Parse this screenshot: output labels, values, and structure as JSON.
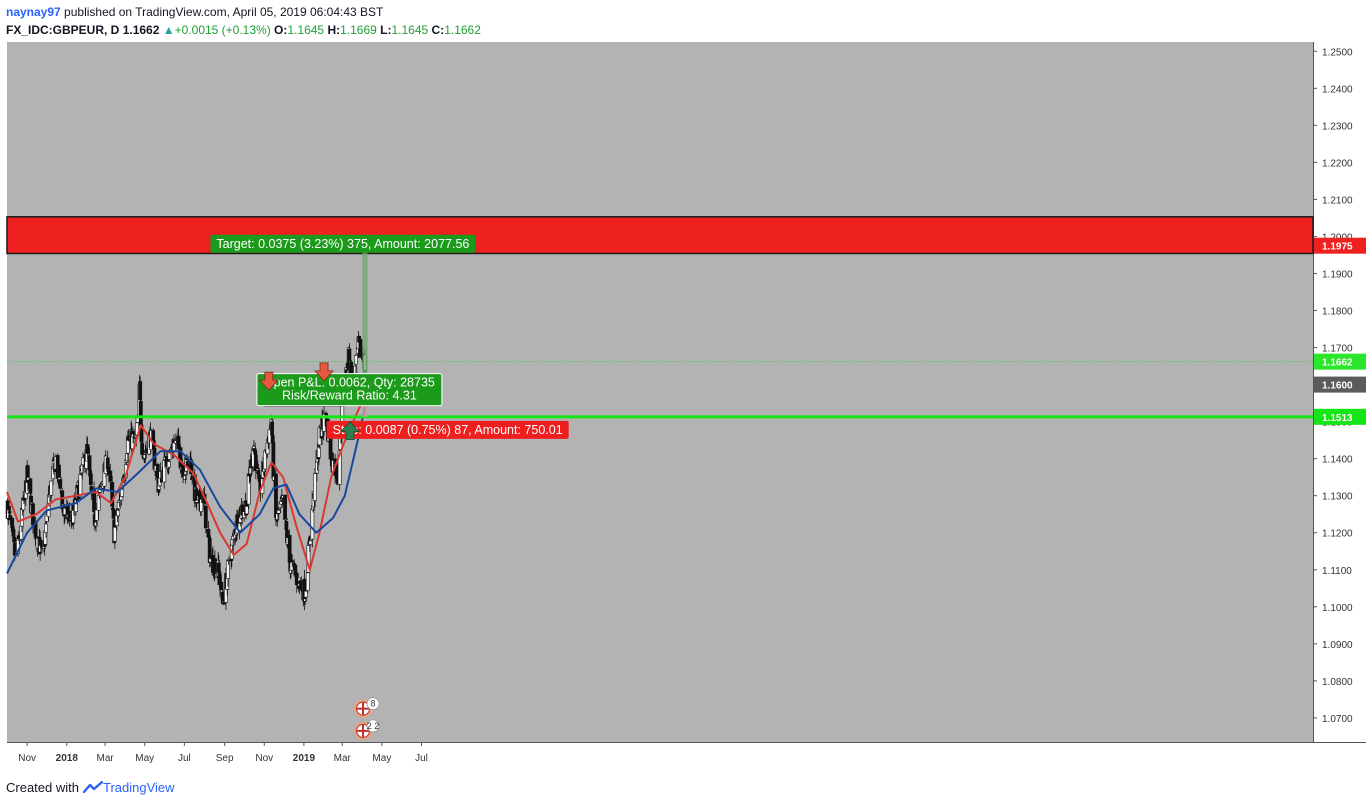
{
  "header": {
    "author": "naynay97",
    "published": "published on TradingView.com, April 05, 2019 06:04:43 BST",
    "symbol": "FX_IDC:GBPEUR, D",
    "last": "1.1662",
    "change": "+0.0015 (+0.13%)",
    "o_label": "O:",
    "o": "1.1645",
    "h_label": "H:",
    "h": "1.1669",
    "l_label": "L:",
    "l": "1.1645",
    "c_label": "C:",
    "c": "1.1662"
  },
  "footer": {
    "created": "Created with",
    "brand": "TradingView"
  },
  "colors": {
    "plot_bg": "#b3b3b3",
    "resistance_zone": "#ef2020",
    "support_line": "#16e616",
    "ma_fast": "#d83a33",
    "ma_slow": "#1848a0",
    "candle_up": "#f2f2f2",
    "candle_down": "#111111",
    "target_label": "#1b9a1b",
    "stop_label": "#ef1f1f",
    "arrow": "#e55a3f"
  },
  "chart_data": {
    "type": "candlestick",
    "symbol": "GBPEUR",
    "interval": "D",
    "x_ticks": [
      "Nov",
      "2018",
      "Mar",
      "May",
      "Jul",
      "Sep",
      "Nov",
      "2019",
      "Mar",
      "May",
      "Jul"
    ],
    "y_ticks": [
      "1.2500",
      "1.2400",
      "1.2300",
      "1.2200",
      "1.2100",
      "1.2000",
      "1.1900",
      "1.1800",
      "1.1700",
      "1.1600",
      "1.1500",
      "1.1400",
      "1.1300",
      "1.1200",
      "1.1100",
      "1.1000",
      "1.0900",
      "1.0800",
      "1.0700"
    ],
    "ylim": [
      1.0635,
      1.2525
    ],
    "close_path": [
      {
        "d": "2017-10-01",
        "c": 1.128
      },
      {
        "d": "2017-10-15",
        "c": 1.112
      },
      {
        "d": "2017-11-01",
        "c": 1.135
      },
      {
        "d": "2017-11-12",
        "c": 1.122
      },
      {
        "d": "2017-11-25",
        "c": 1.113
      },
      {
        "d": "2017-12-05",
        "c": 1.13
      },
      {
        "d": "2017-12-15",
        "c": 1.14
      },
      {
        "d": "2017-12-28",
        "c": 1.125
      },
      {
        "d": "2018-01-10",
        "c": 1.124
      },
      {
        "d": "2018-01-20",
        "c": 1.133
      },
      {
        "d": "2018-02-01",
        "c": 1.142
      },
      {
        "d": "2018-02-12",
        "c": 1.123
      },
      {
        "d": "2018-02-25",
        "c": 1.134
      },
      {
        "d": "2018-03-05",
        "c": 1.14
      },
      {
        "d": "2018-03-15",
        "c": 1.12
      },
      {
        "d": "2018-03-25",
        "c": 1.13
      },
      {
        "d": "2018-04-05",
        "c": 1.145
      },
      {
        "d": "2018-04-18",
        "c": 1.145
      },
      {
        "d": "2018-04-23",
        "c": 1.158
      },
      {
        "d": "2018-04-28",
        "c": 1.14
      },
      {
        "d": "2018-05-10",
        "c": 1.146
      },
      {
        "d": "2018-05-22",
        "c": 1.133
      },
      {
        "d": "2018-06-05",
        "c": 1.14
      },
      {
        "d": "2018-06-18",
        "c": 1.145
      },
      {
        "d": "2018-06-30",
        "c": 1.137
      },
      {
        "d": "2018-07-10",
        "c": 1.14
      },
      {
        "d": "2018-07-20",
        "c": 1.127
      },
      {
        "d": "2018-07-30",
        "c": 1.13
      },
      {
        "d": "2018-08-10",
        "c": 1.113
      },
      {
        "d": "2018-08-22",
        "c": 1.11
      },
      {
        "d": "2018-08-29",
        "c": 1.101
      },
      {
        "d": "2018-09-10",
        "c": 1.114
      },
      {
        "d": "2018-09-22",
        "c": 1.125
      },
      {
        "d": "2018-10-05",
        "c": 1.128
      },
      {
        "d": "2018-10-15",
        "c": 1.145
      },
      {
        "d": "2018-10-25",
        "c": 1.131
      },
      {
        "d": "2018-11-05",
        "c": 1.143
      },
      {
        "d": "2018-11-12",
        "c": 1.151
      },
      {
        "d": "2018-11-18",
        "c": 1.123
      },
      {
        "d": "2018-11-30",
        "c": 1.128
      },
      {
        "d": "2018-12-10",
        "c": 1.112
      },
      {
        "d": "2018-12-20",
        "c": 1.108
      },
      {
        "d": "2019-01-03",
        "c": 1.104
      },
      {
        "d": "2019-01-12",
        "c": 1.122
      },
      {
        "d": "2019-01-25",
        "c": 1.146
      },
      {
        "d": "2019-02-04",
        "c": 1.152
      },
      {
        "d": "2019-02-12",
        "c": 1.14
      },
      {
        "d": "2019-02-22",
        "c": 1.136
      },
      {
        "d": "2019-03-02",
        "c": 1.155
      },
      {
        "d": "2019-03-10",
        "c": 1.168
      },
      {
        "d": "2019-03-18",
        "c": 1.16
      },
      {
        "d": "2019-03-26",
        "c": 1.17
      },
      {
        "d": "2019-04-05",
        "c": 1.1662
      }
    ],
    "ma_fast": [
      {
        "d": "2017-10-01",
        "v": 1.131
      },
      {
        "d": "2017-10-18",
        "v": 1.123
      },
      {
        "d": "2017-11-15",
        "v": 1.125
      },
      {
        "d": "2017-12-15",
        "v": 1.129
      },
      {
        "d": "2018-01-15",
        "v": 1.13
      },
      {
        "d": "2018-02-15",
        "v": 1.131
      },
      {
        "d": "2018-03-10",
        "v": 1.128
      },
      {
        "d": "2018-04-01",
        "v": 1.135
      },
      {
        "d": "2018-04-25",
        "v": 1.149
      },
      {
        "d": "2018-05-15",
        "v": 1.144
      },
      {
        "d": "2018-06-15",
        "v": 1.141
      },
      {
        "d": "2018-07-15",
        "v": 1.136
      },
      {
        "d": "2018-08-05",
        "v": 1.128
      },
      {
        "d": "2018-08-25",
        "v": 1.12
      },
      {
        "d": "2018-09-15",
        "v": 1.114
      },
      {
        "d": "2018-10-05",
        "v": 1.117
      },
      {
        "d": "2018-10-25",
        "v": 1.131
      },
      {
        "d": "2018-11-12",
        "v": 1.139
      },
      {
        "d": "2018-11-30",
        "v": 1.135
      },
      {
        "d": "2018-12-20",
        "v": 1.122
      },
      {
        "d": "2019-01-10",
        "v": 1.11
      },
      {
        "d": "2019-01-25",
        "v": 1.12
      },
      {
        "d": "2019-02-12",
        "v": 1.135
      },
      {
        "d": "2019-03-01",
        "v": 1.143
      },
      {
        "d": "2019-03-15",
        "v": 1.149
      },
      {
        "d": "2019-04-05",
        "v": 1.157
      }
    ],
    "ma_slow": [
      {
        "d": "2017-10-01",
        "v": 1.109
      },
      {
        "d": "2017-11-01",
        "v": 1.12
      },
      {
        "d": "2017-12-01",
        "v": 1.126
      },
      {
        "d": "2018-01-15",
        "v": 1.128
      },
      {
        "d": "2018-02-15",
        "v": 1.132
      },
      {
        "d": "2018-03-20",
        "v": 1.131
      },
      {
        "d": "2018-04-20",
        "v": 1.136
      },
      {
        "d": "2018-05-25",
        "v": 1.142
      },
      {
        "d": "2018-06-25",
        "v": 1.142
      },
      {
        "d": "2018-07-25",
        "v": 1.137
      },
      {
        "d": "2018-08-25",
        "v": 1.127
      },
      {
        "d": "2018-09-25",
        "v": 1.12
      },
      {
        "d": "2018-10-25",
        "v": 1.125
      },
      {
        "d": "2018-11-15",
        "v": 1.132
      },
      {
        "d": "2018-12-05",
        "v": 1.133
      },
      {
        "d": "2018-12-25",
        "v": 1.125
      },
      {
        "d": "2019-01-20",
        "v": 1.12
      },
      {
        "d": "2019-02-15",
        "v": 1.124
      },
      {
        "d": "2019-03-05",
        "v": 1.13
      },
      {
        "d": "2019-03-25",
        "v": 1.145
      },
      {
        "d": "2019-04-05",
        "v": 1.154
      }
    ],
    "resistance_zone": {
      "from": 1.1954,
      "to": 1.2053
    },
    "support_line": 1.1513,
    "support_zone": {
      "from_date": "2018-11-01",
      "to_date": "2019-03-01",
      "from": 1.1543,
      "to": 1.1573
    },
    "down_arrows": [
      {
        "d": "2018-11-08",
        "v": 1.1585
      },
      {
        "d": "2019-02-01",
        "v": 1.161
      }
    ],
    "up_arrow": {
      "d": "2019-03-13",
      "v": 1.15
    },
    "position": {
      "entry_date": "2019-04-01",
      "end_date": "2019-04-09",
      "entry": 1.16,
      "target": 1.1975,
      "stop": 1.1513,
      "target_text": "Target: 0.0375 (3.23%) 375, Amount: 2077.56",
      "open_text": "Open P&L: 0.0062, Qty: 28735",
      "rr_text": "Risk/Reward Ratio: 4.31",
      "stop_text": "Stop: 0.0087 (0.75%) 87, Amount: 750.01"
    },
    "price_labels": [
      {
        "v": 1.1975,
        "text": "1.1975",
        "bg": "#ef2020",
        "fg": "#ffffff"
      },
      {
        "v": 1.1662,
        "text": "1.1662",
        "bg": "#2be72b",
        "fg": "#ffffff"
      },
      {
        "v": 1.16,
        "text": "1.1600",
        "bg": "#5b5b5b",
        "fg": "#ffffff"
      },
      {
        "v": 1.1513,
        "text": "1.1513",
        "bg": "#16e616",
        "fg": "#ffffff"
      }
    ],
    "last_price": 1.1662,
    "events": [
      {
        "d": "2019-04-02",
        "v": 1.0725,
        "count": "8"
      },
      {
        "d": "2019-04-02",
        "v": 1.0665,
        "count": "2 2"
      }
    ]
  }
}
